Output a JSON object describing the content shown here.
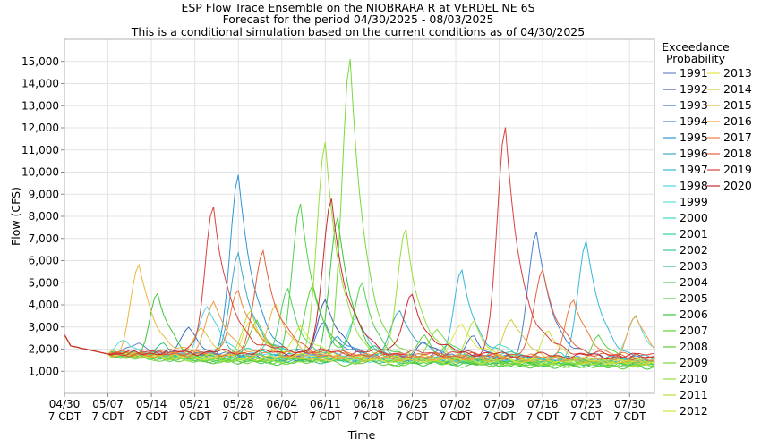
{
  "chart_data": {
    "type": "line",
    "title": [
      "ESP Flow Trace Ensemble on the NIOBRARA R at VERDEL NE 6S",
      "Forecast for the period 04/30/2025 - 08/03/2025",
      "This is a conditional simulation based on the current conditions as of 04/30/2025"
    ],
    "xlabel": "Time",
    "ylabel": "Flow (CFS)",
    "xlim": [
      "04/30",
      "08/03"
    ],
    "ylim": [
      0,
      16000
    ],
    "x_ticks": [
      {
        "line1": "04/30",
        "line2": "7 CDT",
        "day": 0
      },
      {
        "line1": "05/07",
        "line2": "7 CDT",
        "day": 7
      },
      {
        "line1": "05/14",
        "line2": "7 CDT",
        "day": 14
      },
      {
        "line1": "05/21",
        "line2": "7 CDT",
        "day": 21
      },
      {
        "line1": "05/28",
        "line2": "7 CDT",
        "day": 28
      },
      {
        "line1": "06/04",
        "line2": "7 CDT",
        "day": 35
      },
      {
        "line1": "06/11",
        "line2": "7 CDT",
        "day": 42
      },
      {
        "line1": "06/18",
        "line2": "7 CDT",
        "day": 49
      },
      {
        "line1": "06/25",
        "line2": "7 CDT",
        "day": 56
      },
      {
        "line1": "07/02",
        "line2": "7 CDT",
        "day": 63
      },
      {
        "line1": "07/09",
        "line2": "7 CDT",
        "day": 70
      },
      {
        "line1": "07/16",
        "line2": "7 CDT",
        "day": 77
      },
      {
        "line1": "07/23",
        "line2": "7 CDT",
        "day": 84
      },
      {
        "line1": "07/30",
        "line2": "7 CDT",
        "day": 91
      }
    ],
    "y_ticks": [
      {
        "label": "1,000",
        "value": 1000
      },
      {
        "label": "2,000",
        "value": 2000
      },
      {
        "label": "3,000",
        "value": 3000
      },
      {
        "label": "4,000",
        "value": 4000
      },
      {
        "label": "5,000",
        "value": 5000
      },
      {
        "label": "6,000",
        "value": 6000
      },
      {
        "label": "7,000",
        "value": 7000
      },
      {
        "label": "8,000",
        "value": 8000
      },
      {
        "label": "9,000",
        "value": 9000
      },
      {
        "label": "10,000",
        "value": 10000
      },
      {
        "label": "11,000",
        "value": 11000
      },
      {
        "label": "12,000",
        "value": 12000
      },
      {
        "label": "13,000",
        "value": 13000
      },
      {
        "label": "14,000",
        "value": 14000
      },
      {
        "label": "15,000",
        "value": 15000
      }
    ],
    "legend": {
      "title": [
        "Exceedance",
        "Probability"
      ],
      "placement": "right"
    },
    "grid": true,
    "series": [
      {
        "name": "1991",
        "color": "#6b84c8",
        "base": 1700,
        "peaks": [
          [
            12,
            2300
          ],
          [
            60,
            2000
          ]
        ]
      },
      {
        "name": "1992",
        "color": "#3f58b0",
        "base": 1750,
        "peaks": [
          [
            42,
            4300
          ],
          [
            58,
            2400
          ]
        ]
      },
      {
        "name": "1993",
        "color": "#3c6fc6",
        "base": 1650,
        "peaks": [
          [
            20,
            2900
          ],
          [
            66,
            2700
          ]
        ]
      },
      {
        "name": "1994",
        "color": "#4a7fd0",
        "base": 1800,
        "peaks": [
          [
            42,
            3300
          ],
          [
            76,
            7500
          ]
        ]
      },
      {
        "name": "1995",
        "color": "#2f94d6",
        "base": 1750,
        "peaks": [
          [
            28,
            10000
          ],
          [
            44,
            2600
          ]
        ]
      },
      {
        "name": "1996",
        "color": "#40a7c8",
        "base": 1800,
        "peaks": [
          [
            28,
            6300
          ],
          [
            54,
            4000
          ]
        ]
      },
      {
        "name": "1997",
        "color": "#35b9d8",
        "base": 1700,
        "peaks": [
          [
            64,
            5600
          ],
          [
            84,
            7100
          ]
        ]
      },
      {
        "name": "1998",
        "color": "#4fd0e6",
        "base": 1700,
        "peaks": [
          [
            23,
            4000
          ],
          [
            47,
            3500
          ]
        ]
      },
      {
        "name": "1999",
        "color": "#5ee0d8",
        "base": 1650,
        "peaks": [
          [
            10,
            2300
          ],
          [
            92,
            3800
          ]
        ]
      },
      {
        "name": "2000",
        "color": "#3ed8c0",
        "base": 1600,
        "peaks": [
          [
            33,
            2400
          ],
          [
            70,
            2500
          ]
        ]
      },
      {
        "name": "2001",
        "color": "#32cfa8",
        "base": 1650,
        "peaks": [
          [
            30,
            2200
          ],
          [
            80,
            2000
          ]
        ]
      },
      {
        "name": "2002",
        "color": "#3cc890",
        "base": 1600,
        "peaks": [
          [
            26,
            2300
          ],
          [
            72,
            2200
          ]
        ]
      },
      {
        "name": "2003",
        "color": "#34c07a",
        "base": 1550,
        "peaks": [
          [
            16,
            2100
          ],
          [
            50,
            2300
          ]
        ]
      },
      {
        "name": "2004",
        "color": "#4fcf5e",
        "base": 1500,
        "peaks": [
          [
            36,
            4700
          ],
          [
            62,
            2500
          ]
        ]
      },
      {
        "name": "2005",
        "color": "#4cd24a",
        "base": 1550,
        "peaks": [
          [
            38,
            8700
          ],
          [
            48,
            4800
          ]
        ]
      },
      {
        "name": "2006",
        "color": "#3dc53d",
        "base": 1450,
        "peaks": [
          [
            15,
            4300
          ],
          [
            44,
            8000
          ]
        ]
      },
      {
        "name": "2007",
        "color": "#5ad43a",
        "base": 1500,
        "peaks": [
          [
            40,
            5100
          ],
          [
            86,
            2800
          ]
        ]
      },
      {
        "name": "2008",
        "color": "#62c83c",
        "base": 1450,
        "peaks": [
          [
            31,
            3400
          ],
          [
            58,
            2700
          ]
        ]
      },
      {
        "name": "2009",
        "color": "#78d83e",
        "base": 1500,
        "peaks": [
          [
            46,
            15100
          ],
          [
            60,
            3000
          ]
        ]
      },
      {
        "name": "2010",
        "color": "#94e03c",
        "base": 1550,
        "peaks": [
          [
            42,
            11500
          ],
          [
            55,
            7500
          ]
        ]
      },
      {
        "name": "2011",
        "color": "#b2e23c",
        "base": 1600,
        "peaks": [
          [
            30,
            3700
          ],
          [
            66,
            3300
          ]
        ]
      },
      {
        "name": "2012",
        "color": "#cee43c",
        "base": 1650,
        "peaks": [
          [
            38,
            3200
          ],
          [
            78,
            2900
          ]
        ]
      },
      {
        "name": "2013",
        "color": "#e2e43e",
        "base": 1700,
        "peaks": [
          [
            30,
            3300
          ],
          [
            64,
            3400
          ]
        ]
      },
      {
        "name": "2014",
        "color": "#d6c83e",
        "base": 1700,
        "peaks": [
          [
            22,
            2900
          ],
          [
            72,
            3600
          ]
        ]
      },
      {
        "name": "2015",
        "color": "#e8b83e",
        "base": 1750,
        "peaks": [
          [
            12,
            5800
          ],
          [
            34,
            4000
          ]
        ]
      },
      {
        "name": "2016",
        "color": "#ee9e3e",
        "base": 1800,
        "peaks": [
          [
            24,
            4200
          ],
          [
            92,
            3700
          ]
        ]
      },
      {
        "name": "2017",
        "color": "#ea7e3c",
        "base": 1850,
        "peaks": [
          [
            28,
            4800
          ],
          [
            82,
            4400
          ]
        ]
      },
      {
        "name": "2018",
        "color": "#e2603c",
        "base": 1900,
        "peaks": [
          [
            32,
            6600
          ],
          [
            77,
            5900
          ]
        ]
      },
      {
        "name": "2019",
        "color": "#d8413c",
        "base": 2000,
        "peaks": [
          [
            24,
            8600
          ],
          [
            71,
            12100
          ]
        ]
      },
      {
        "name": "2020",
        "color": "#c82a30",
        "base": 1950,
        "peaks": [
          [
            43,
            9000
          ],
          [
            56,
            4500
          ]
        ]
      }
    ]
  }
}
